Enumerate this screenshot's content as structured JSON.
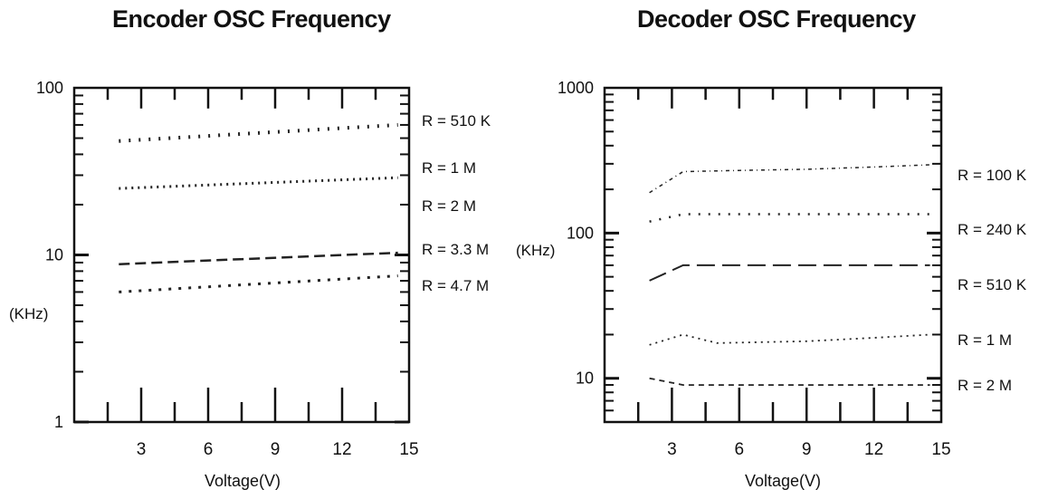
{
  "chart_data": [
    {
      "type": "line",
      "title": "Encoder  OSC Frequency",
      "xlabel": "Voltage(V)",
      "ylabel": "(KHz)",
      "xlim": [
        0,
        15
      ],
      "ylim": [
        1,
        100
      ],
      "yscale": "log",
      "x_ticks": [
        "3",
        "6",
        "9",
        "12",
        "15"
      ],
      "y_ticks": [
        "1",
        "10",
        "100"
      ],
      "grid": false,
      "legend_placement": "right",
      "series": [
        {
          "name": "R = 510 K",
          "x": [
            2,
            14.5
          ],
          "y": [
            48,
            60
          ]
        },
        {
          "name": "R = 1 M",
          "x": [
            2,
            14.5
          ],
          "y": [
            25,
            29
          ]
        },
        {
          "name": "R = 2 M",
          "x": [],
          "y": []
        },
        {
          "name": "R = 3.3 M",
          "x": [
            2,
            14.5
          ],
          "y": [
            8.8,
            10.3
          ]
        },
        {
          "name": "R = 4.7 M",
          "x": [
            2,
            14.5
          ],
          "y": [
            6,
            7.5
          ]
        }
      ]
    },
    {
      "type": "line",
      "title": "Decoder OSC Frequency",
      "xlabel": "Voltage(V)",
      "ylabel": "(KHz)",
      "xlim": [
        0,
        15
      ],
      "ylim": [
        5,
        1000
      ],
      "yscale": "log",
      "x_ticks": [
        "3",
        "6",
        "9",
        "12",
        "15"
      ],
      "y_ticks": [
        "10",
        "100",
        "1000"
      ],
      "grid": false,
      "legend_placement": "right",
      "series": [
        {
          "name": "R = 100 K",
          "x": [
            2,
            3.5,
            6,
            9,
            12,
            14.5
          ],
          "y": [
            190,
            265,
            270,
            275,
            285,
            295
          ]
        },
        {
          "name": "R = 240 K",
          "x": [
            2,
            3.5,
            6,
            9,
            12,
            14.5
          ],
          "y": [
            120,
            135,
            135,
            135,
            135,
            135
          ]
        },
        {
          "name": "R = 510 K",
          "x": [
            2,
            3.5,
            6,
            9,
            12,
            14.5
          ],
          "y": [
            47,
            60,
            60,
            60,
            60,
            60
          ]
        },
        {
          "name": "R = 1 M",
          "x": [
            2,
            3.5,
            5,
            9,
            12,
            14.5
          ],
          "y": [
            17,
            20,
            17.5,
            18,
            19,
            20
          ]
        },
        {
          "name": "R = 2 M",
          "x": [
            2,
            3.5,
            6,
            9,
            12,
            14.5
          ],
          "y": [
            10,
            9,
            9,
            9,
            9,
            9
          ]
        }
      ]
    }
  ]
}
